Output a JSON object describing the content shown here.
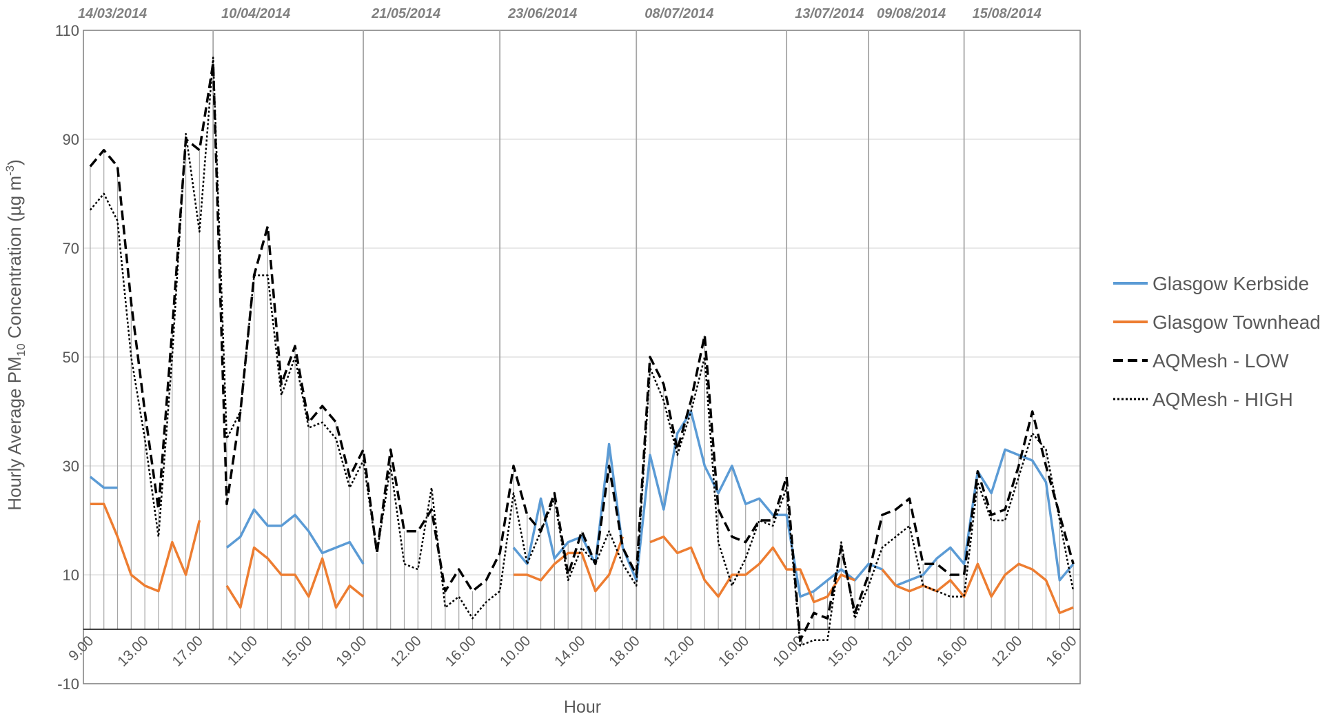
{
  "chart_data": {
    "type": "line",
    "y_label": {
      "main": "Hourly Average PM",
      "sub": "10",
      "mid": " Concentration (µg m",
      "sup": "-3",
      "end": ")"
    },
    "x_label": "Hour",
    "categories": [
      "9.00",
      null,
      null,
      null,
      "13.00",
      null,
      null,
      null,
      "17.00",
      null,
      null,
      null,
      "11.00",
      null,
      null,
      null,
      "15.00",
      null,
      null,
      null,
      "19.00",
      null,
      null,
      null,
      "12.00",
      null,
      null,
      null,
      "16.00",
      null,
      null,
      null,
      "10.00",
      null,
      null,
      null,
      "14.00",
      null,
      null,
      null,
      "18.00",
      null,
      null,
      null,
      "12.00",
      null,
      null,
      null,
      "16.00",
      null,
      null,
      null,
      "10.00",
      null,
      null,
      null,
      "15.00",
      null,
      null,
      null,
      "12.00",
      null,
      null,
      null,
      "16.00",
      null,
      null,
      null,
      "12.00",
      null,
      null,
      null,
      "16.00"
    ],
    "category_groups": [
      {
        "label": "14/03/2014",
        "size": 10
      },
      {
        "label": "10/04/2014",
        "size": 11
      },
      {
        "label": "21/05/2014",
        "size": 10
      },
      {
        "label": "23/06/2014",
        "size": 10
      },
      {
        "label": "08/07/2014",
        "size": 11
      },
      {
        "label": "13/07/2014",
        "size": 6
      },
      {
        "label": "09/08/2014",
        "size": 7
      },
      {
        "label": "15/08/2014",
        "size": 8
      }
    ],
    "series": [
      {
        "name": "Glasgow Kerbside",
        "color": "#5b9bd5",
        "dash": "solid",
        "values": [
          28,
          26,
          26,
          null,
          null,
          null,
          null,
          null,
          null,
          null,
          15,
          17,
          22,
          19,
          19,
          21,
          18,
          14,
          15,
          16,
          12,
          null,
          null,
          null,
          null,
          null,
          null,
          null,
          null,
          null,
          null,
          15,
          12,
          24,
          13,
          16,
          17,
          12,
          34,
          15,
          9,
          32,
          22,
          36,
          40,
          30,
          25,
          30,
          23,
          24,
          21,
          21,
          6,
          7,
          9,
          11,
          9,
          12,
          11,
          8,
          9,
          10,
          13,
          15,
          12,
          29,
          25,
          33,
          32,
          31,
          27,
          9,
          12
        ]
      },
      {
        "name": "Glasgow Townhead",
        "color": "#ed7d31",
        "dash": "solid",
        "values": [
          23,
          23,
          17,
          10,
          8,
          7,
          16,
          10,
          20,
          null,
          8,
          4,
          15,
          13,
          10,
          10,
          6,
          13,
          4,
          8,
          6,
          null,
          null,
          null,
          null,
          null,
          null,
          null,
          null,
          null,
          null,
          10,
          10,
          9,
          12,
          14,
          14,
          7,
          10,
          17,
          null,
          16,
          17,
          14,
          15,
          9,
          6,
          10,
          10,
          12,
          15,
          11,
          11,
          5,
          6,
          10,
          9,
          null,
          11,
          8,
          7,
          8,
          7,
          9,
          6,
          12,
          6,
          10,
          12,
          11,
          9,
          3,
          4
        ]
      },
      {
        "name": "AQMesh - LOW",
        "color": "#000000",
        "dash": "dashed",
        "values": [
          85,
          88,
          85,
          60,
          40,
          22,
          55,
          90,
          88,
          104,
          23,
          40,
          65,
          74,
          45,
          52,
          38,
          41,
          38,
          28,
          33,
          14,
          33,
          18,
          18,
          22,
          7,
          11,
          7,
          9,
          14,
          30,
          21,
          18,
          25,
          10,
          18,
          12,
          30,
          15,
          10,
          50,
          45,
          33,
          42,
          54,
          22,
          17,
          16,
          20,
          20,
          28,
          -2,
          3,
          2,
          15,
          3,
          10,
          21,
          22,
          24,
          12,
          12,
          10,
          10,
          29,
          21,
          22,
          30,
          40,
          30,
          21,
          12
        ]
      },
      {
        "name": "AQMesh - HIGH",
        "color": "#000000",
        "dash": "dotted",
        "values": [
          77,
          80,
          75,
          50,
          35,
          17,
          50,
          91,
          73,
          105,
          35,
          40,
          65,
          65,
          43,
          50,
          37,
          38,
          35,
          26,
          31,
          14,
          30,
          12,
          11,
          26,
          4,
          6,
          2,
          5,
          7,
          25,
          12,
          18,
          24,
          9,
          15,
          12,
          18,
          12,
          8,
          48,
          42,
          32,
          40,
          50,
          16,
          8,
          13,
          20,
          19,
          26,
          -3,
          -2,
          -2,
          16,
          2,
          8,
          15,
          17,
          19,
          8,
          7,
          6,
          6,
          27,
          20,
          20,
          28,
          36,
          33,
          20,
          7
        ]
      }
    ],
    "ylim": [
      -10,
      110
    ],
    "yticks": [
      -10,
      10,
      30,
      50,
      70,
      90,
      110
    ],
    "grid": true,
    "drop_lines": true,
    "legend": "right"
  }
}
